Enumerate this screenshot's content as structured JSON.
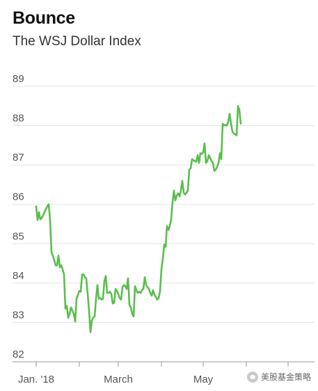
{
  "header": {
    "title": "Bounce",
    "subtitle": "The WSJ Dollar Index"
  },
  "watermark": {
    "text": "美股基金策略"
  },
  "colors": {
    "line": "#5bbd4e",
    "grid": "#e3e3e3",
    "axis": "#9a9a9a"
  },
  "chart_data": {
    "type": "line",
    "title": "Bounce",
    "subtitle": "The WSJ Dollar Index",
    "xlabel": "",
    "ylabel": "",
    "ylim": [
      82,
      89
    ],
    "yticks": [
      82,
      83,
      84,
      85,
      86,
      87,
      88,
      89
    ],
    "x_tick_labels": [
      "Jan. '18",
      "March",
      "May"
    ],
    "grid": true,
    "legend": "none",
    "x_range_days": [
      0,
      200
    ],
    "x_tick_days": [
      0,
      31,
      59,
      90,
      120,
      151,
      181
    ],
    "x_tick_label_days": [
      0,
      59,
      120
    ],
    "series": [
      {
        "name": "",
        "points": [
          [
            0,
            85.95
          ],
          [
            1,
            85.6
          ],
          [
            2,
            85.8
          ],
          [
            3,
            85.62
          ],
          [
            4,
            85.66
          ],
          [
            5,
            85.72
          ],
          [
            6,
            85.8
          ],
          [
            7,
            85.88
          ],
          [
            8,
            85.95
          ],
          [
            9,
            86.0
          ],
          [
            10,
            85.6
          ],
          [
            11,
            84.78
          ],
          [
            12,
            84.7
          ],
          [
            13,
            84.58
          ],
          [
            14,
            84.45
          ],
          [
            15,
            84.45
          ],
          [
            16,
            84.7
          ],
          [
            17,
            84.4
          ],
          [
            18,
            84.45
          ],
          [
            19,
            84.35
          ],
          [
            20,
            84.22
          ],
          [
            21,
            83.35
          ],
          [
            22,
            83.42
          ],
          [
            23,
            83.12
          ],
          [
            24,
            83.22
          ],
          [
            25,
            83.38
          ],
          [
            26,
            83.3
          ],
          [
            27,
            83.22
          ],
          [
            28,
            83.02
          ],
          [
            29,
            83.6
          ],
          [
            30,
            83.7
          ],
          [
            31,
            83.8
          ],
          [
            32,
            83.78
          ],
          [
            33,
            84.22
          ],
          [
            34,
            84.22
          ],
          [
            35,
            84.15
          ],
          [
            36,
            84.12
          ],
          [
            37,
            83.72
          ],
          [
            38,
            83.3
          ],
          [
            39,
            82.75
          ],
          [
            40,
            83.05
          ],
          [
            41,
            83.12
          ],
          [
            42,
            83.15
          ],
          [
            43,
            83.6
          ],
          [
            44,
            83.95
          ],
          [
            45,
            83.6
          ],
          [
            46,
            83.62
          ],
          [
            47,
            83.58
          ],
          [
            48,
            83.6
          ],
          [
            49,
            84.05
          ],
          [
            50,
            84.18
          ],
          [
            51,
            83.75
          ],
          [
            52,
            83.75
          ],
          [
            53,
            83.78
          ],
          [
            54,
            83.72
          ],
          [
            55,
            83.48
          ],
          [
            56,
            83.5
          ],
          [
            57,
            83.85
          ],
          [
            58,
            83.8
          ],
          [
            59,
            83.72
          ],
          [
            60,
            83.62
          ],
          [
            61,
            83.58
          ],
          [
            62,
            83.9
          ],
          [
            63,
            83.95
          ],
          [
            64,
            83.92
          ],
          [
            65,
            83.85
          ],
          [
            66,
            84.12
          ],
          [
            67,
            83.45
          ],
          [
            68,
            83.38
          ],
          [
            69,
            83.22
          ],
          [
            70,
            83.15
          ],
          [
            71,
            83.92
          ],
          [
            72,
            83.82
          ],
          [
            73,
            83.75
          ],
          [
            74,
            83.78
          ],
          [
            75,
            83.75
          ],
          [
            76,
            83.82
          ],
          [
            77,
            83.85
          ],
          [
            78,
            84.15
          ],
          [
            79,
            83.95
          ],
          [
            80,
            83.9
          ],
          [
            81,
            83.85
          ],
          [
            82,
            83.75
          ],
          [
            83,
            83.68
          ],
          [
            84,
            83.82
          ],
          [
            85,
            83.7
          ],
          [
            86,
            83.65
          ],
          [
            87,
            83.58
          ],
          [
            88,
            83.62
          ],
          [
            89,
            83.8
          ],
          [
            90,
            84.35
          ],
          [
            91,
            84.62
          ],
          [
            92,
            84.98
          ],
          [
            93,
            84.92
          ],
          [
            94,
            85.45
          ],
          [
            95,
            85.35
          ],
          [
            96,
            85.45
          ],
          [
            97,
            85.62
          ],
          [
            98,
            86.05
          ],
          [
            99,
            86.35
          ],
          [
            100,
            86.1
          ],
          [
            101,
            86.22
          ],
          [
            102,
            86.28
          ],
          [
            103,
            86.2
          ],
          [
            104,
            86.35
          ],
          [
            105,
            86.6
          ],
          [
            106,
            86.3
          ],
          [
            107,
            86.25
          ],
          [
            108,
            86.3
          ],
          [
            109,
            86.35
          ],
          [
            110,
            86.88
          ],
          [
            111,
            86.92
          ],
          [
            112,
            87.15
          ],
          [
            113,
            87.12
          ],
          [
            114,
            87.1
          ],
          [
            115,
            87.08
          ],
          [
            116,
            87.25
          ],
          [
            117,
            87.05
          ],
          [
            118,
            87.3
          ],
          [
            119,
            87.28
          ],
          [
            120,
            87.32
          ],
          [
            121,
            87.55
          ],
          [
            122,
            87.05
          ],
          [
            123,
            87.1
          ],
          [
            124,
            87.25
          ],
          [
            125,
            87.18
          ],
          [
            126,
            87.1
          ],
          [
            127,
            87.05
          ],
          [
            128,
            86.85
          ],
          [
            129,
            86.88
          ],
          [
            130,
            86.95
          ],
          [
            131,
            87.05
          ],
          [
            132,
            87.3
          ],
          [
            133,
            87.15
          ],
          [
            134,
            88.05
          ],
          [
            135,
            88.0
          ],
          [
            136,
            88.02
          ],
          [
            137,
            88.0
          ],
          [
            138,
            88.1
          ],
          [
            139,
            88.3
          ],
          [
            140,
            88.05
          ],
          [
            141,
            87.85
          ],
          [
            142,
            87.8
          ],
          [
            143,
            87.78
          ],
          [
            144,
            87.75
          ],
          [
            145,
            88.5
          ],
          [
            146,
            88.4
          ],
          [
            147,
            88.05
          ]
        ]
      }
    ]
  }
}
